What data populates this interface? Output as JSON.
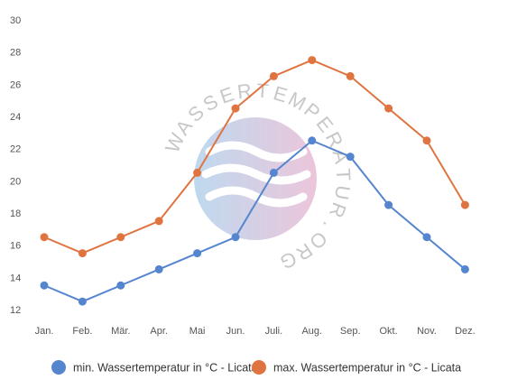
{
  "chart_data": {
    "type": "line",
    "categories": [
      "Jan.",
      "Feb.",
      "Mär.",
      "Apr.",
      "Mai",
      "Jun.",
      "Juli.",
      "Aug.",
      "Sep.",
      "Okt.",
      "Nov.",
      "Dez."
    ],
    "series": [
      {
        "name": "min. Wassertemperatur in °C - Licata",
        "color": "#5585cf",
        "values": [
          13.5,
          12.5,
          13.5,
          14.5,
          15.5,
          16.5,
          20.5,
          22.5,
          21.5,
          18.5,
          16.5,
          14.5
        ]
      },
      {
        "name": "max. Wassertemperatur in °C - Licata",
        "color": "#e07440",
        "values": [
          16.5,
          15.5,
          16.5,
          17.5,
          20.5,
          24.5,
          26.5,
          27.5,
          26.5,
          24.5,
          22.5,
          18.5
        ]
      }
    ],
    "y_ticks": [
      12,
      14,
      16,
      18,
      20,
      22,
      24,
      26,
      28,
      30
    ],
    "ylim": [
      12,
      30
    ],
    "grid": false,
    "legend": "bottom",
    "watermark": "WASSERTEMPERATUR.ORG"
  }
}
